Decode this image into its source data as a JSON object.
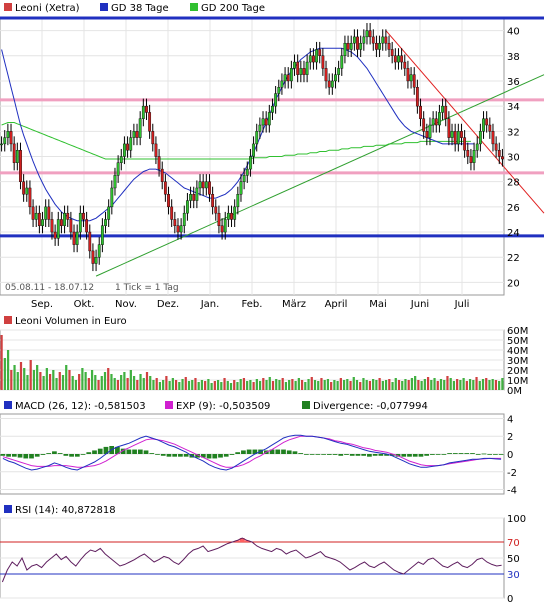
{
  "chart_data": [
    {
      "type": "candlestick",
      "legend": [
        {
          "label": "Leoni (Xetra)",
          "color": "#d04040"
        },
        {
          "label": "GD 38 Tage",
          "color": "#2030c0"
        },
        {
          "label": "GD 200 Tage",
          "color": "#30c030"
        }
      ],
      "date_range": "05.08.11 - 18.07.12",
      "tick_info": "1 Tick = 1 Tag",
      "x_months": [
        "Sep.",
        "Okt.",
        "Nov.",
        "Dez.",
        "Jan.",
        "Feb.",
        "März",
        "April",
        "Mai",
        "Juni",
        "Juli"
      ],
      "y_ticks": [
        "20",
        "22",
        "24",
        "26",
        "28",
        "30",
        "32",
        "34",
        "36",
        "38",
        "40"
      ],
      "ylim": [
        19,
        41
      ],
      "closes": [
        31,
        31.5,
        32,
        31,
        29.5,
        30.5,
        28,
        27,
        27.5,
        26,
        25,
        25.5,
        24.5,
        25,
        26,
        25,
        24,
        23.5,
        25,
        24.5,
        25.5,
        25,
        24,
        23,
        24,
        25.5,
        25,
        24,
        22.5,
        21.5,
        22,
        23,
        24.5,
        25,
        26,
        27.5,
        28.5,
        29.5,
        30,
        31,
        30.5,
        31.5,
        32,
        31.5,
        33,
        34,
        33.5,
        32,
        31,
        30,
        29,
        28,
        27,
        26,
        25,
        24.5,
        24,
        24.5,
        25.5,
        26.5,
        27,
        26.5,
        27.5,
        28,
        27.5,
        28,
        27,
        26,
        25.5,
        24.5,
        24,
        25,
        25.5,
        25,
        26,
        27,
        28,
        28.5,
        29,
        30,
        31,
        32,
        32.5,
        33,
        32.5,
        33.5,
        34,
        35,
        35.5,
        36,
        36.5,
        36,
        37,
        37.5,
        36.5,
        37,
        36.5,
        37.5,
        38,
        37.5,
        38.5,
        38,
        37,
        36,
        35.5,
        36,
        36.5,
        37,
        38,
        39,
        38.5,
        39,
        39.5,
        38.5,
        39,
        39.5,
        40,
        39.5,
        39,
        38.5,
        39,
        39.5,
        39,
        38.5,
        38,
        37.5,
        38,
        37.5,
        37,
        36,
        36.5,
        35.5,
        34,
        33,
        32,
        31.5,
        32.5,
        33,
        32.5,
        33.5,
        34,
        33,
        31.5,
        32,
        31,
        32,
        31.5,
        30.5,
        30,
        29.5,
        30.5,
        31,
        32,
        33,
        32.5,
        32,
        31,
        30.5,
        30,
        29.8
      ],
      "sma38": [
        38.5,
        37.5,
        36.5,
        35.5,
        34.5,
        33.5,
        32.5,
        31.7,
        31,
        30.3,
        29.6,
        29,
        28.4,
        27.9,
        27.4,
        27,
        26.6,
        26.2,
        25.9,
        25.6,
        25.4,
        25.2,
        25.1,
        25,
        24.9,
        24.9,
        24.9,
        24.9,
        24.9,
        25,
        25.1,
        25.3,
        25.5,
        25.7,
        25.9,
        26.1,
        26.4,
        26.7,
        27,
        27.3,
        27.6,
        27.9,
        28.2,
        28.4,
        28.6,
        28.8,
        28.9,
        29,
        29,
        29,
        28.9,
        28.8,
        28.7,
        28.5,
        28.3,
        28.1,
        27.9,
        27.7,
        27.5,
        27.4,
        27.3,
        27.2,
        27.1,
        27,
        26.9,
        26.8,
        26.7,
        26.7,
        26.7,
        26.8,
        26.9,
        27,
        27.2,
        27.4,
        27.7,
        28,
        28.4,
        28.8,
        29.3,
        29.8,
        30.3,
        30.9,
        31.5,
        32.1,
        32.7,
        33.3,
        33.9,
        34.5,
        35,
        35.5,
        36,
        36.4,
        36.8,
        37.1,
        37.4,
        37.7,
        37.9,
        38.1,
        38.3,
        38.4,
        38.5,
        38.6,
        38.6,
        38.6,
        38.6,
        38.6,
        38.6,
        38.6,
        38.6,
        38.5,
        38.4,
        38.3,
        38.1,
        37.9,
        37.6,
        37.3,
        37,
        36.6,
        36.2,
        35.8,
        35.4,
        35,
        34.6,
        34.2,
        33.8,
        33.4,
        33,
        32.7,
        32.4,
        32.2,
        32,
        31.9,
        31.8,
        31.7,
        31.6,
        31.5,
        31.4,
        31.3,
        31.2,
        31.1,
        31,
        31,
        31,
        31,
        31,
        31,
        31,
        31,
        31,
        31,
        31
      ],
      "sma200": [
        32.5,
        32.6,
        32.7,
        32.7,
        32.7,
        32.6,
        32.5,
        32.4,
        32.3,
        32.2,
        32.1,
        32,
        31.9,
        31.8,
        31.7,
        31.6,
        31.5,
        31.4,
        31.3,
        31.2,
        31.1,
        31,
        30.9,
        30.8,
        30.7,
        30.6,
        30.5,
        30.4,
        30.3,
        30.2,
        30.1,
        30,
        29.9,
        29.8,
        29.8,
        29.8,
        29.8,
        29.8,
        29.8,
        29.8,
        29.8,
        29.8,
        29.8,
        29.8,
        29.8,
        29.8,
        29.8,
        29.8,
        29.8,
        29.8,
        29.8,
        29.8,
        29.8,
        29.8,
        29.8,
        29.8,
        29.8,
        29.8,
        29.8,
        29.8,
        29.8,
        29.8,
        29.8,
        29.8,
        29.8,
        29.8,
        29.8,
        29.8,
        29.8,
        29.8,
        29.8,
        29.8,
        29.8,
        29.8,
        29.8,
        29.8,
        29.8,
        29.8,
        29.8,
        29.8,
        29.9,
        29.9,
        29.9,
        29.9,
        29.9,
        30,
        30,
        30,
        30,
        30,
        30.1,
        30.1,
        30.1,
        30.1,
        30.2,
        30.2,
        30.2,
        30.2,
        30.3,
        30.3,
        30.3,
        30.4,
        30.4,
        30.4,
        30.5,
        30.5,
        30.5,
        30.5,
        30.6,
        30.6,
        30.6,
        30.7,
        30.7,
        30.7,
        30.7,
        30.8,
        30.8,
        30.8,
        30.8,
        30.9,
        30.9,
        30.9,
        30.9,
        31,
        31,
        31,
        31,
        31,
        31.1,
        31.1,
        31.1,
        31.1,
        31.1,
        31.2,
        31.2,
        31.2,
        31.2,
        31.2,
        31.2,
        31.2,
        31.2,
        31.2,
        31.2,
        31.2,
        31.2,
        31.2,
        31.2,
        31.2,
        31.2,
        31.2
      ],
      "hlines_blue": [
        41,
        23.7
      ],
      "hlines_pink": [
        34.5,
        28.7
      ]
    },
    {
      "type": "bar",
      "title": "Leoni Volumen in Euro",
      "y_ticks": [
        "0M",
        "10M",
        "20M",
        "30M",
        "40M",
        "50M",
        "60M"
      ],
      "ylim": [
        0,
        60
      ],
      "volume": [
        55,
        32,
        40,
        20,
        25,
        18,
        28,
        22,
        15,
        30,
        20,
        25,
        18,
        14,
        22,
        16,
        20,
        12,
        18,
        15,
        25,
        20,
        14,
        10,
        16,
        22,
        18,
        12,
        20,
        15,
        10,
        14,
        18,
        22,
        16,
        12,
        10,
        15,
        18,
        12,
        20,
        14,
        10,
        16,
        12,
        18,
        14,
        10,
        12,
        8,
        10,
        14,
        9,
        12,
        10,
        8,
        11,
        13,
        9,
        10,
        12,
        8,
        10,
        9,
        11,
        7,
        9,
        10,
        8,
        12,
        9,
        7,
        10,
        8,
        11,
        12,
        9,
        10,
        8,
        11,
        9,
        12,
        10,
        13,
        9,
        11,
        10,
        12,
        8,
        10,
        11,
        9,
        12,
        10,
        8,
        11,
        13,
        10,
        9,
        12,
        10,
        11,
        8,
        10,
        9,
        12,
        10,
        11,
        9,
        13,
        10,
        8,
        12,
        10,
        9,
        11,
        10,
        12,
        9,
        10,
        11,
        8,
        12,
        10,
        9,
        11,
        10,
        12,
        14,
        10,
        9,
        11,
        13,
        10,
        12,
        9,
        11,
        10,
        14,
        12,
        9,
        11,
        10,
        12,
        9,
        11,
        10,
        13,
        9,
        11,
        12,
        10,
        11,
        10,
        9,
        12
      ]
    },
    {
      "type": "line",
      "legend": [
        {
          "label": "MACD (26, 12): -0,581503",
          "color": "#2030c0"
        },
        {
          "label": "EXP (9): -0,503509",
          "color": "#d020d0"
        },
        {
          "label": "Divergence: -0,077994",
          "color": "#208020"
        }
      ],
      "y_ticks": [
        "-4",
        "-2",
        "0",
        "2",
        "4"
      ],
      "ylim": [
        -4.5,
        4.5
      ],
      "macd": [
        -0.5,
        -0.8,
        -1,
        -1.3,
        -1.6,
        -1.8,
        -1.7,
        -1.5,
        -1.3,
        -1,
        -1.2,
        -1.5,
        -1.7,
        -1.8,
        -1.5,
        -1.2,
        -0.9,
        -0.5,
        0,
        0.5,
        0.8,
        1,
        1.2,
        1.5,
        1.8,
        2,
        1.8,
        1.6,
        1.3,
        1,
        0.8,
        0.5,
        0.2,
        -0.2,
        -0.5,
        -0.8,
        -1.2,
        -1.5,
        -1.7,
        -1.8,
        -1.6,
        -1.2,
        -0.8,
        -0.4,
        0,
        0.3,
        0.6,
        1,
        1.4,
        1.8,
        2,
        2.1,
        2.1,
        2,
        2,
        1.9,
        1.8,
        1.6,
        1.4,
        1.2,
        1.1,
        0.9,
        0.7,
        0.5,
        0.3,
        0.2,
        0.1,
        0,
        -0.2,
        -0.5,
        -0.8,
        -1.1,
        -1.3,
        -1.5,
        -1.5,
        -1.4,
        -1.3,
        -1.2,
        -1,
        -0.9,
        -0.8,
        -0.7,
        -0.6,
        -0.6,
        -0.5,
        -0.5,
        -0.55,
        -0.58
      ],
      "signal": [
        -0.3,
        -0.5,
        -0.7,
        -0.9,
        -1.1,
        -1.3,
        -1.4,
        -1.4,
        -1.4,
        -1.3,
        -1.3,
        -1.3,
        -1.4,
        -1.5,
        -1.5,
        -1.4,
        -1.3,
        -1.1,
        -0.8,
        -0.4,
        0,
        0.4,
        0.7,
        1,
        1.3,
        1.6,
        1.7,
        1.6,
        1.5,
        1.3,
        1.1,
        0.8,
        0.5,
        0.2,
        -0.1,
        -0.4,
        -0.7,
        -1,
        -1.3,
        -1.5,
        -1.5,
        -1.4,
        -1.2,
        -0.9,
        -0.5,
        -0.2,
        0.2,
        0.5,
        0.9,
        1.3,
        1.6,
        1.8,
        2,
        2,
        2,
        1.9,
        1.8,
        1.7,
        1.5,
        1.4,
        1.2,
        1.1,
        0.9,
        0.7,
        0.6,
        0.4,
        0.3,
        0.2,
        0,
        -0.2,
        -0.5,
        -0.8,
        -1,
        -1.2,
        -1.3,
        -1.3,
        -1.3,
        -1.2,
        -1.1,
        -1,
        -0.9,
        -0.8,
        -0.7,
        -0.6,
        -0.55,
        -0.5,
        -0.5,
        -0.5
      ]
    },
    {
      "type": "line",
      "title": "RSI (14): 40,872818",
      "y_ticks": [
        "0",
        "30",
        "50",
        "70",
        "100"
      ],
      "ylim": [
        0,
        100
      ],
      "hlines": [
        70,
        30
      ],
      "rsi": [
        20,
        35,
        45,
        40,
        50,
        35,
        40,
        42,
        38,
        45,
        50,
        55,
        48,
        52,
        45,
        40,
        48,
        55,
        60,
        58,
        62,
        55,
        50,
        45,
        40,
        42,
        45,
        48,
        52,
        55,
        50,
        45,
        48,
        52,
        50,
        45,
        42,
        48,
        55,
        60,
        62,
        65,
        58,
        60,
        62,
        65,
        68,
        70,
        72,
        75,
        72,
        70,
        65,
        62,
        60,
        58,
        62,
        60,
        55,
        58,
        60,
        55,
        50,
        52,
        55,
        58,
        52,
        50,
        48,
        45,
        40,
        35,
        38,
        42,
        45,
        40,
        38,
        42,
        45,
        40,
        35,
        32,
        30,
        35,
        40,
        45,
        42,
        48,
        50,
        45,
        40,
        38,
        42,
        45,
        40,
        38,
        42,
        48,
        50,
        45,
        42,
        40,
        41
      ]
    }
  ]
}
